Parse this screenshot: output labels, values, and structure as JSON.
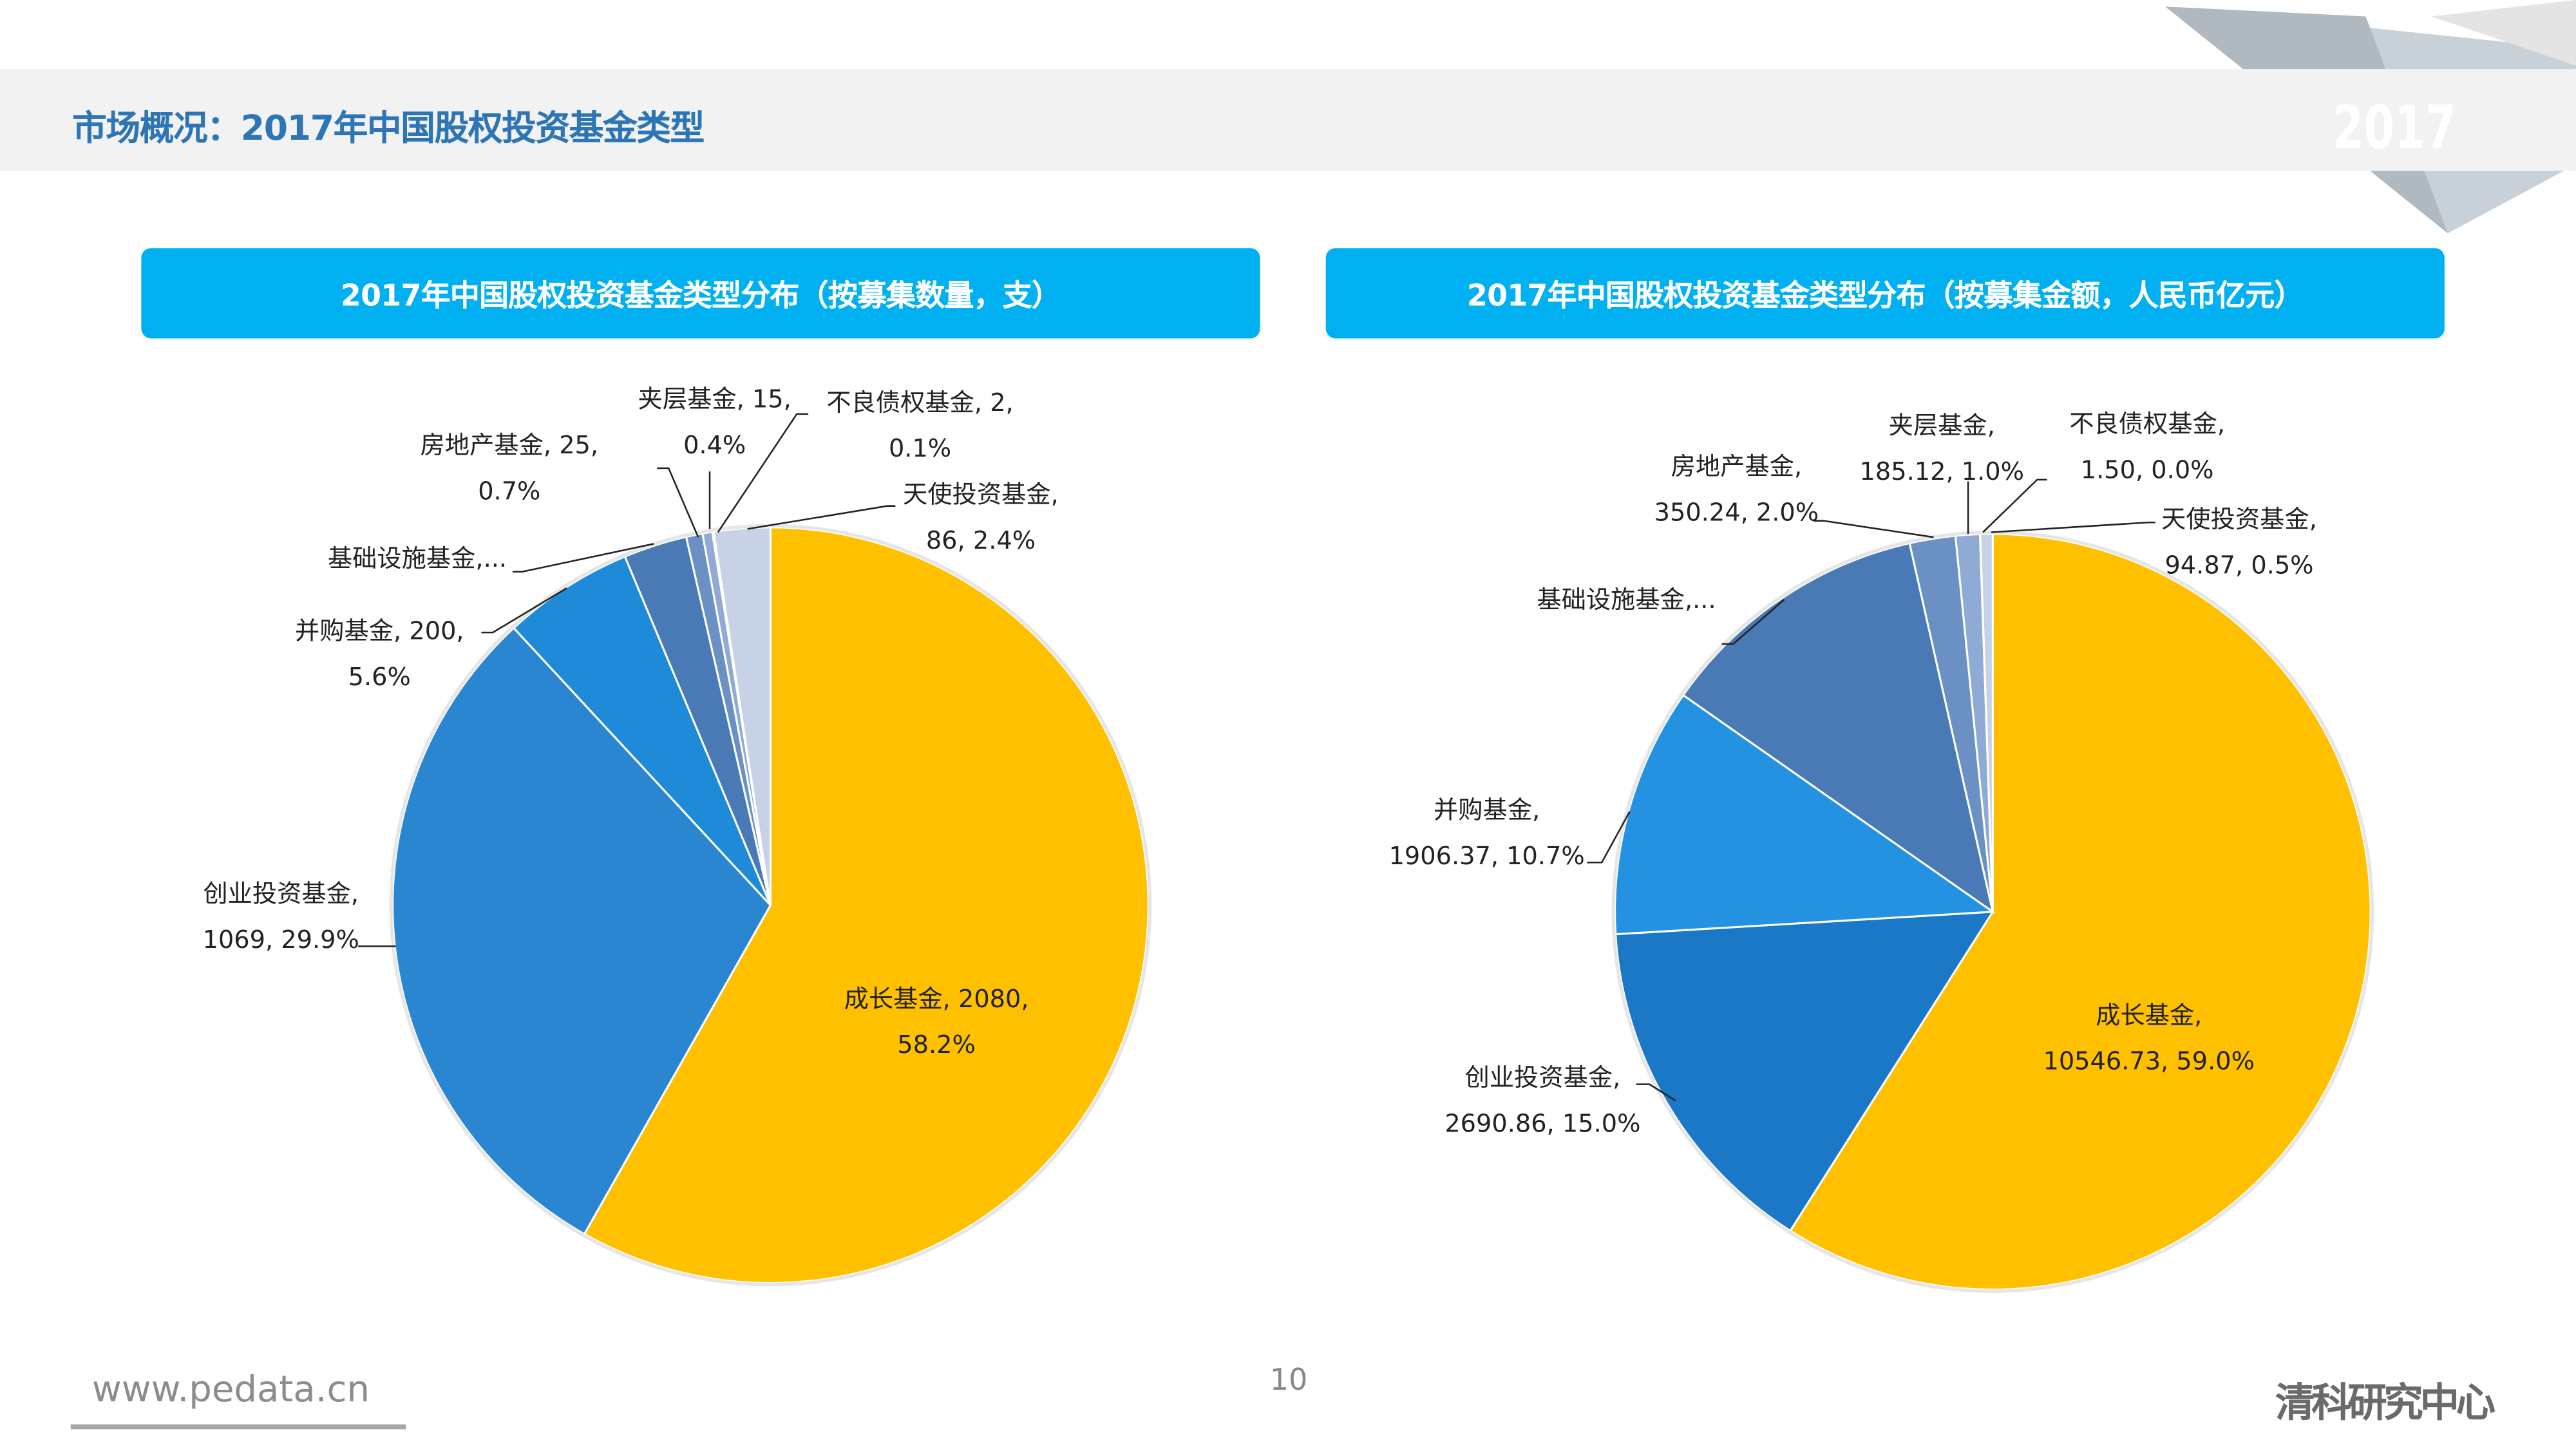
{
  "header": {
    "title": "市场概况：2017年中国股权投资基金类型",
    "year_badge": "2017"
  },
  "footer": {
    "url": "www.pedata.cn",
    "page_number": "10",
    "brand": "清科研究中心"
  },
  "colors": {
    "accent": "#00b0f0",
    "title": "#2e75b6",
    "growth": "#ffc000"
  },
  "chart_data": [
    {
      "type": "pie",
      "title": "2017年中国股权投资基金类型分布（按募集数量，支）",
      "unit": "支",
      "slices": [
        {
          "name": "成长基金",
          "value": 2080,
          "percent": 58.2,
          "color": "#ffc000",
          "label": [
            "成长基金, 2080,",
            "58.2%"
          ]
        },
        {
          "name": "创业投资基金",
          "value": 1069,
          "percent": 29.9,
          "color": "#2a86d0",
          "label": [
            "创业投资基金,",
            "1069, 29.9%"
          ]
        },
        {
          "name": "并购基金",
          "value": 200,
          "percent": 5.6,
          "color": "#1e8ad8",
          "label": [
            "并购基金, 200,",
            "5.6%"
          ]
        },
        {
          "name": "基础设施基金",
          "value": 97,
          "percent": 2.7,
          "color": "#4a7ab5",
          "label": [
            "基础设施基金,..."
          ]
        },
        {
          "name": "房地产基金",
          "value": 25,
          "percent": 0.7,
          "color": "#6a90c4",
          "label": [
            "房地产基金, 25,",
            "0.7%"
          ]
        },
        {
          "name": "夹层基金",
          "value": 15,
          "percent": 0.4,
          "color": "#8faad4",
          "label": [
            "夹层基金, 15,",
            "0.4%"
          ]
        },
        {
          "name": "不良债权基金",
          "value": 2,
          "percent": 0.1,
          "color": "#b0c0dc",
          "label": [
            "不良债权基金, 2,",
            "0.1%"
          ]
        },
        {
          "name": "天使投资基金",
          "value": 86,
          "percent": 2.4,
          "color": "#c8d2e6",
          "label": [
            "天使投资基金,",
            "86, 2.4%"
          ]
        }
      ]
    },
    {
      "type": "pie",
      "title": "2017年中国股权投资基金类型分布（按募集金额，人民币亿元）",
      "unit": "人民币亿元",
      "slices": [
        {
          "name": "成长基金",
          "value": 10546.73,
          "percent": 59.0,
          "color": "#ffc000",
          "label": [
            "成长基金,",
            "10546.73, 59.0%"
          ]
        },
        {
          "name": "创业投资基金",
          "value": 2690.86,
          "percent": 15.0,
          "color": "#1a78c6",
          "label": [
            "创业投资基金,",
            "2690.86, 15.0%"
          ]
        },
        {
          "name": "并购基金",
          "value": 1906.37,
          "percent": 10.7,
          "color": "#2492e0",
          "label": [
            "并购基金,",
            "1906.37, 10.7%"
          ]
        },
        {
          "name": "基础设施基金",
          "value": 2100,
          "percent": 11.7,
          "color": "#4a7ab5",
          "label": [
            "基础设施基金,..."
          ]
        },
        {
          "name": "房地产基金",
          "value": 350.24,
          "percent": 2.0,
          "color": "#6a90c4",
          "label": [
            "房地产基金,",
            "350.24, 2.0%"
          ]
        },
        {
          "name": "夹层基金",
          "value": 185.12,
          "percent": 1.0,
          "color": "#8faad4",
          "label": [
            "夹层基金,",
            "185.12, 1.0%"
          ]
        },
        {
          "name": "不良债权基金",
          "value": 1.5,
          "percent": 0.0,
          "color": "#b0c0dc",
          "label": [
            "不良债权基金,",
            "1.50, 0.0%"
          ]
        },
        {
          "name": "天使投资基金",
          "value": 94.87,
          "percent": 0.5,
          "color": "#c8d2e6",
          "label": [
            "天使投资基金,",
            "94.87, 0.5%"
          ]
        }
      ]
    }
  ]
}
